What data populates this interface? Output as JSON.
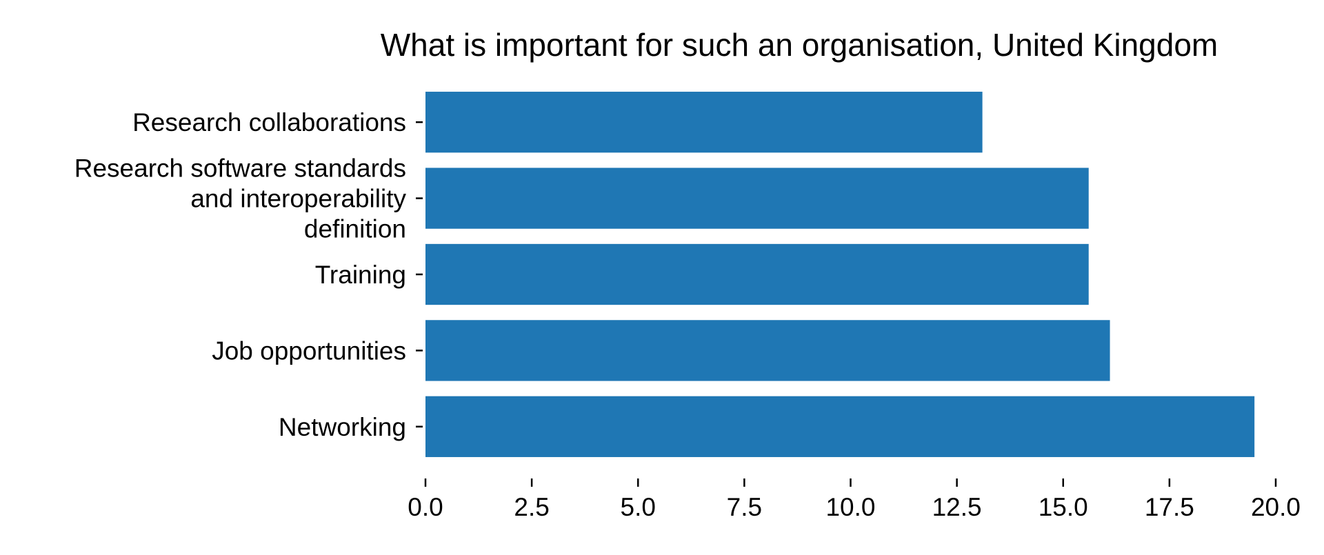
{
  "chart_data": {
    "type": "bar",
    "orientation": "horizontal",
    "title": "What is important for such an organisation, United Kingdom",
    "xlabel": "",
    "ylabel": "",
    "categories": [
      [
        "Research collaborations"
      ],
      [
        "Research software standards",
        "and interoperability",
        "definition"
      ],
      [
        "Training"
      ],
      [
        "Job opportunities"
      ],
      [
        "Networking"
      ]
    ],
    "values": [
      13.1,
      15.6,
      15.6,
      16.1,
      19.5
    ],
    "xlim": [
      0,
      20
    ],
    "xticks": [
      "0.0",
      "2.5",
      "5.0",
      "7.5",
      "10.0",
      "12.5",
      "15.0",
      "17.5",
      "20.0"
    ],
    "bar_color": "#1f77b4",
    "grid": false,
    "legend": "none"
  }
}
